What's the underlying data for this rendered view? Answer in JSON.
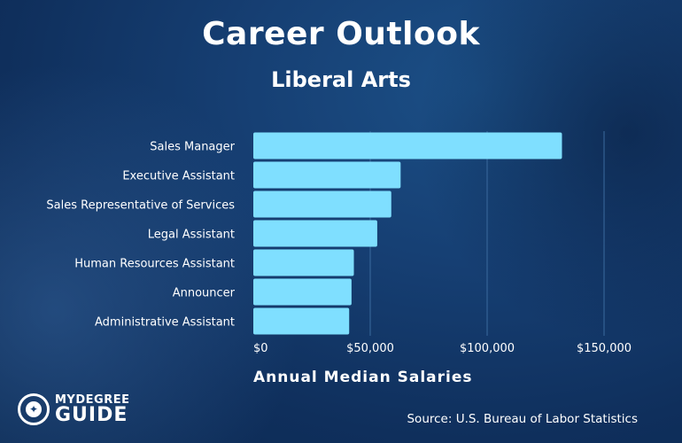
{
  "header": {
    "title": "Career Outlook",
    "subtitle": "Liberal Arts"
  },
  "footer": {
    "source": "Source: U.S. Bureau of Labor Statistics",
    "logo_top": "MYDEGREE",
    "logo_bottom": "GUIDE"
  },
  "colors": {
    "bar": "#7fdfff",
    "gridline": "#3a6a9e",
    "text": "#ffffff"
  },
  "chart_data": {
    "type": "bar",
    "orientation": "horizontal",
    "title": "Career Outlook",
    "subtitle": "Liberal Arts",
    "xlabel": "Annual Median Salaries",
    "ylabel": "",
    "categories": [
      "Sales Manager",
      "Executive Assistant",
      "Sales Representative of Services",
      "Legal Assistant",
      "Human Resources Assistant",
      "Announcer",
      "Administrative Assistant"
    ],
    "values": [
      132000,
      63000,
      59000,
      53000,
      43000,
      42000,
      41000
    ],
    "xlim": [
      0,
      150000
    ],
    "ticks": [
      0,
      50000,
      100000,
      150000
    ],
    "tick_labels": [
      "$0",
      "$50,000",
      "$100,000",
      "$150,000"
    ],
    "grid": true,
    "legend": "none"
  }
}
